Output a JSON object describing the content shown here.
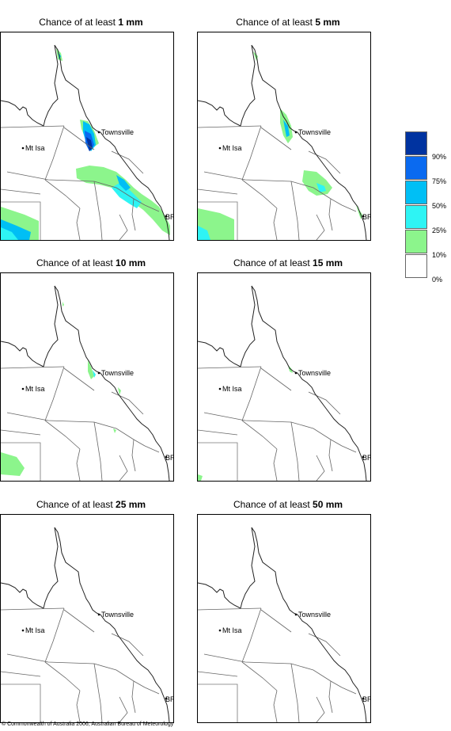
{
  "panels": [
    {
      "title_prefix": "Chance of at least ",
      "amount": "1 mm"
    },
    {
      "title_prefix": "Chance of at least ",
      "amount": "5 mm"
    },
    {
      "title_prefix": "Chance of at least ",
      "amount": "10 mm"
    },
    {
      "title_prefix": "Chance of at least ",
      "amount": "15 mm"
    },
    {
      "title_prefix": "Chance of at least ",
      "amount": "25 mm"
    },
    {
      "title_prefix": "Chance of at least ",
      "amount": "50 mm"
    }
  ],
  "places": {
    "townsville": "Townsville",
    "mt_isa": "Mt Isa",
    "brisbane": "BRIS"
  },
  "legend": {
    "labels": [
      "90%",
      "75%",
      "50%",
      "25%",
      "10%",
      "0%"
    ],
    "colors": [
      "#0033a0",
      "#0a6af0",
      "#00bff5",
      "#2ef4f4",
      "#8cf58c",
      "#ffffff"
    ]
  },
  "copyright": "© Commonwealth of Australia 2006, Australian Bureau of Meteorology"
}
